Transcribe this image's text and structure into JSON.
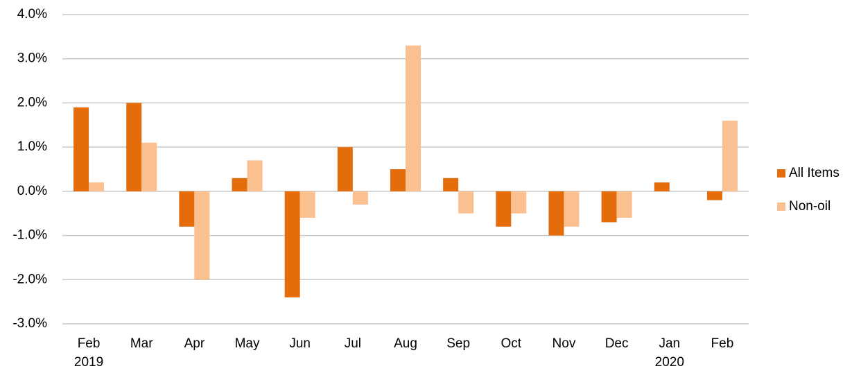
{
  "chart_data": {
    "type": "bar",
    "categories": [
      "Feb\n2019",
      "Mar",
      "Apr",
      "May",
      "Jun",
      "Jul",
      "Aug",
      "Sep",
      "Oct",
      "Nov",
      "Dec",
      "Jan\n2020",
      "Feb"
    ],
    "series": [
      {
        "name": "All Items",
        "color": "#e46c0a",
        "values": [
          1.9,
          2.0,
          -0.8,
          0.3,
          -2.4,
          1.0,
          0.5,
          0.3,
          -0.8,
          -1.0,
          -0.7,
          0.2,
          -0.2
        ]
      },
      {
        "name": "Non-oil",
        "color": "#fac090",
        "values": [
          0.2,
          1.1,
          -2.0,
          0.7,
          -0.6,
          -0.3,
          3.3,
          -0.5,
          -0.5,
          -0.8,
          -0.6,
          0.0,
          1.6
        ]
      }
    ],
    "ylim": [
      -3,
      4
    ],
    "yticks": [
      {
        "value": -3,
        "label": "-3.0%"
      },
      {
        "value": -2,
        "label": "-2.0%"
      },
      {
        "value": -1,
        "label": "-1.0%"
      },
      {
        "value": 0,
        "label": "0.0%"
      },
      {
        "value": 1,
        "label": "1.0%"
      },
      {
        "value": 2,
        "label": "2.0%"
      },
      {
        "value": 3,
        "label": "3.0%"
      },
      {
        "value": 4,
        "label": "4.0%"
      }
    ],
    "grid": true,
    "legend": "right"
  }
}
